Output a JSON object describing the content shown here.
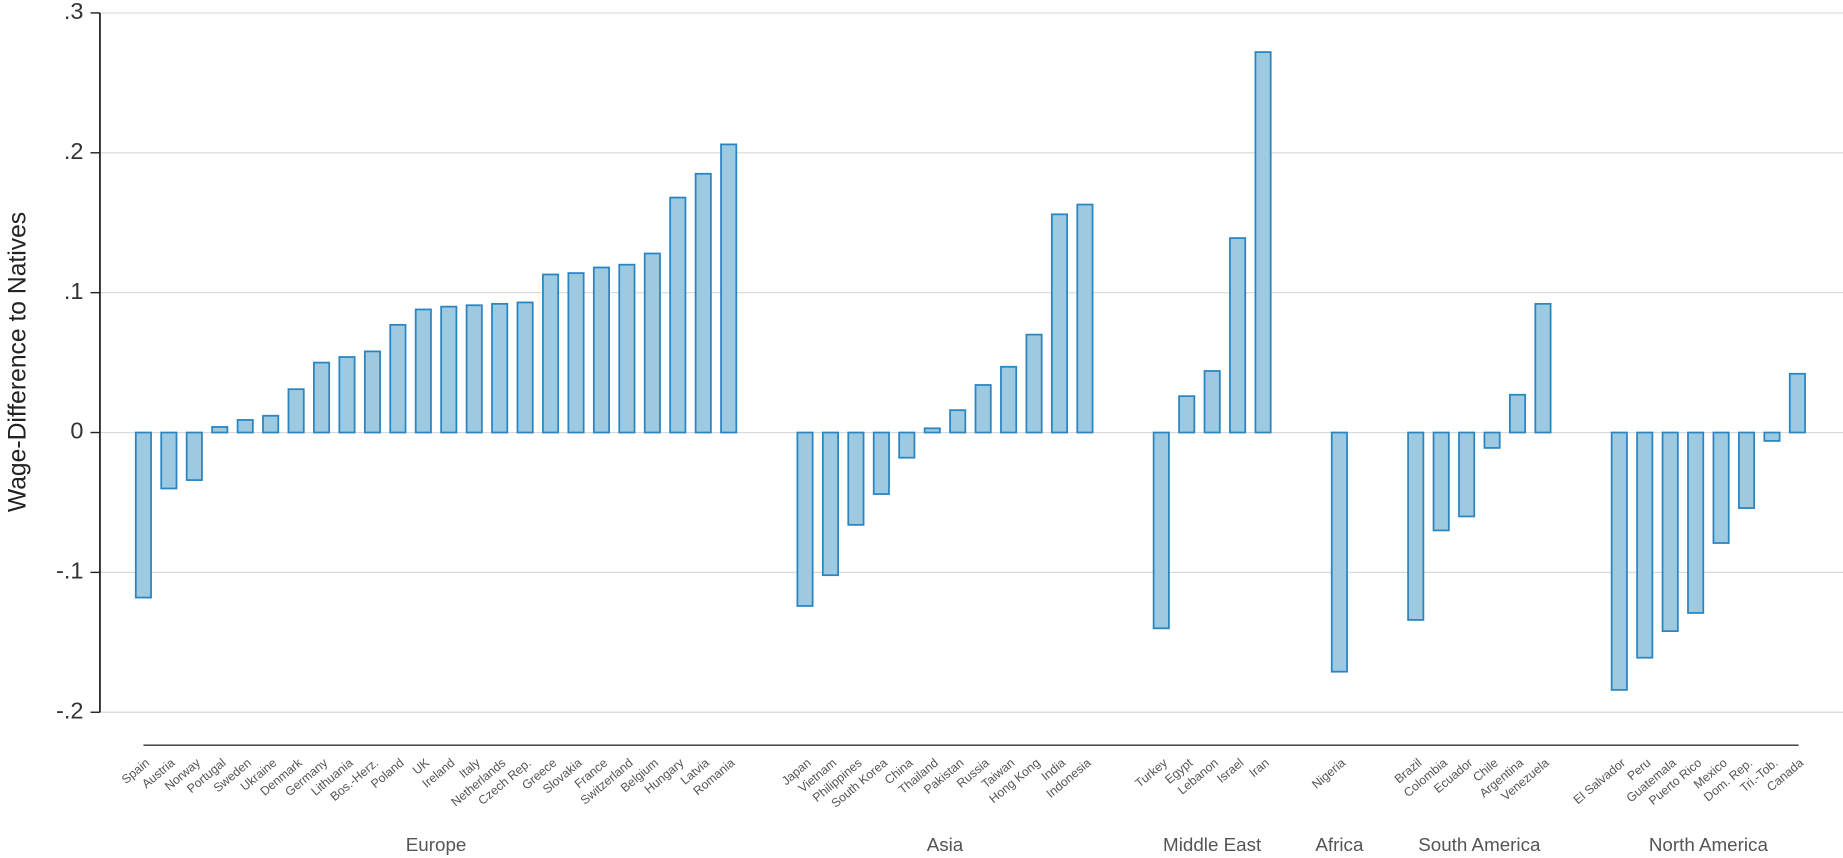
{
  "chart_data": {
    "type": "bar",
    "y_label": "Wage-Difference to Natives",
    "ylim": [
      -0.2,
      0.3
    ],
    "yticks": [
      {
        "value": -0.2,
        "label": "-.2"
      },
      {
        "value": -0.1,
        "label": "-.1"
      },
      0,
      {
        "value": 0.1,
        "label": ".1"
      },
      {
        "value": 0.2,
        "label": ".2"
      },
      {
        "value": 0.3,
        "label": ".3"
      }
    ],
    "grid": true,
    "color": "#9ecae1",
    "edge_color": "#2b85c0",
    "groups": [
      {
        "name": "Europe",
        "categories": [
          "Spain",
          "Austria",
          "Norway",
          "Portugal",
          "Sweden",
          "Ukraine",
          "Denmark",
          "Germany",
          "Lithuania",
          "Bos.-Herz.",
          "Poland",
          "UK",
          "Ireland",
          "Italy",
          "Netherlands",
          "Czech Rep.",
          "Greece",
          "Slovakia",
          "France",
          "Switzerland",
          "Belgium",
          "Hungary",
          "Latvia",
          "Romania"
        ],
        "values": [
          -0.118,
          -0.04,
          -0.034,
          0.004,
          0.009,
          0.012,
          0.031,
          0.05,
          0.054,
          0.058,
          0.077,
          0.088,
          0.09,
          0.091,
          0.092,
          0.093,
          0.113,
          0.114,
          0.118,
          0.12,
          0.128,
          0.168,
          0.185,
          0.206
        ]
      },
      {
        "name": "Asia",
        "categories": [
          "Japan",
          "Vietnam",
          "Philippines",
          "South Korea",
          "China",
          "Thailand",
          "Pakistan",
          "Russia",
          "Taiwan",
          "Hong Kong",
          "India",
          "Indonesia"
        ],
        "values": [
          -0.124,
          -0.102,
          -0.066,
          -0.044,
          -0.018,
          0.003,
          0.016,
          0.034,
          0.047,
          0.07,
          0.156,
          0.163
        ]
      },
      {
        "name": "Middle East",
        "categories": [
          "Turkey",
          "Egypt",
          "Lebanon",
          "Israel",
          "Iran"
        ],
        "values": [
          -0.14,
          0.026,
          0.044,
          0.139,
          0.272
        ]
      },
      {
        "name": "Africa",
        "categories": [
          "Nigeria"
        ],
        "values": [
          -0.171
        ]
      },
      {
        "name": "South America",
        "categories": [
          "Brazil",
          "Colombia",
          "Ecuador",
          "Chile",
          "Argentina",
          "Venezuela"
        ],
        "values": [
          -0.134,
          -0.07,
          -0.06,
          -0.011,
          0.027,
          0.092
        ]
      },
      {
        "name": "North America",
        "categories": [
          "El Salvador",
          "Peru",
          "Guatemala",
          "Puerto Rico",
          "Mexico",
          "Dom. Rep.",
          "Tri.-Tob.",
          "Canada"
        ],
        "values": [
          -0.184,
          -0.161,
          -0.142,
          -0.129,
          -0.079,
          -0.054,
          -0.006,
          0.042
        ]
      }
    ]
  }
}
